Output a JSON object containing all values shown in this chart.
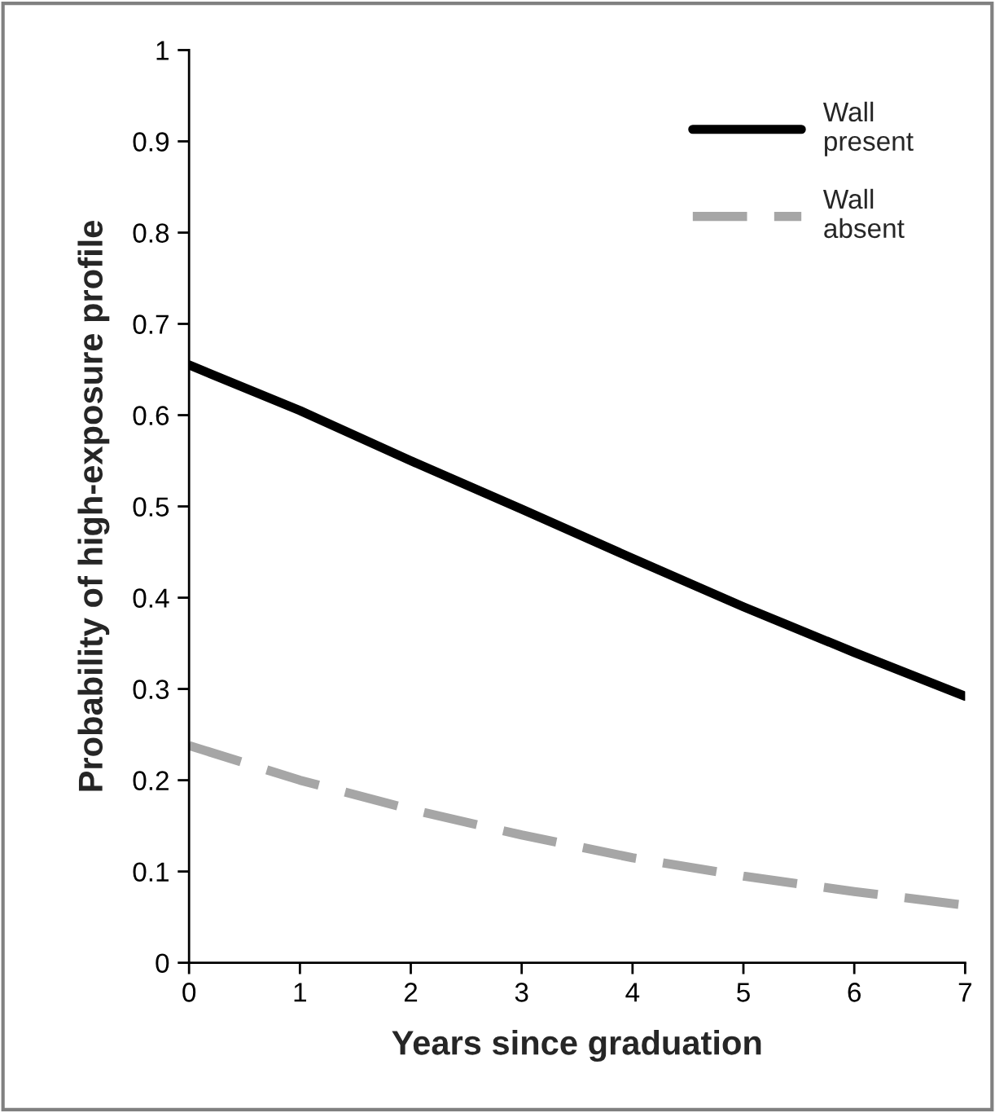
{
  "chart_data": {
    "type": "line",
    "xlabel": "Years since graduation",
    "ylabel": "Probability of high-exposure profile",
    "x": [
      0,
      1,
      2,
      3,
      4,
      5,
      6,
      7
    ],
    "series": [
      {
        "name": "Wall\npresent",
        "color": "#000000",
        "line_style": "solid",
        "values": [
          0.655,
          0.605,
          0.55,
          0.497,
          0.443,
          0.39,
          0.34,
          0.292
        ]
      },
      {
        "name": "Wall\nabsent",
        "color": "#a6a6a6",
        "line_style": "dashed",
        "values": [
          0.238,
          0.2,
          0.168,
          0.14,
          0.115,
          0.095,
          0.078,
          0.063
        ]
      }
    ],
    "xlim": [
      0,
      7
    ],
    "xticks": [
      0,
      1,
      2,
      3,
      4,
      5,
      6,
      7
    ],
    "ylim": [
      0,
      1
    ],
    "yticks": [
      0,
      0.1,
      0.2,
      0.3,
      0.4,
      0.5,
      0.6,
      0.7,
      0.8,
      0.9,
      1
    ],
    "grid": false,
    "legend": "top right",
    "marker": "none"
  }
}
